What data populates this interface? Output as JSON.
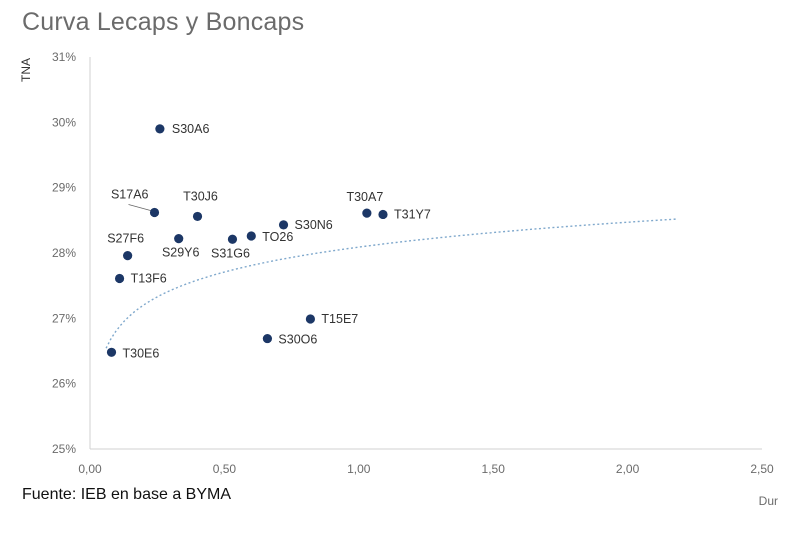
{
  "title": "Curva Lecaps y Boncaps",
  "source": "Fuente: IEB en base a BYMA",
  "chart_data": {
    "type": "scatter",
    "title": "Curva Lecaps y Boncaps",
    "xlabel": "Dur",
    "ylabel": "TNA",
    "xlim": [
      0,
      2.5
    ],
    "ylim": [
      25,
      31
    ],
    "x_ticks": [
      0,
      0.5,
      1.0,
      1.5,
      2.0,
      2.5
    ],
    "x_tick_labels": [
      "0,00",
      "0,50",
      "1,00",
      "1,50",
      "2,00",
      "2,50"
    ],
    "y_ticks": [
      25,
      26,
      27,
      28,
      29,
      30,
      31
    ],
    "y_tick_labels": [
      "25%",
      "26%",
      "27%",
      "28%",
      "29%",
      "30%",
      "31%"
    ],
    "grid": false,
    "point_color": "#1c3766",
    "trend_color": "#7fa8cc",
    "points": [
      {
        "label": "S30A6",
        "x": 0.26,
        "y": 29.9
      },
      {
        "label": "S17A6",
        "x": 0.24,
        "y": 28.62
      },
      {
        "label": "T30J6",
        "x": 0.4,
        "y": 28.56
      },
      {
        "label": "T30A7",
        "x": 1.03,
        "y": 28.61
      },
      {
        "label": "T31Y7",
        "x": 1.09,
        "y": 28.59
      },
      {
        "label": "S30N6",
        "x": 0.72,
        "y": 28.43
      },
      {
        "label": "TO26",
        "x": 0.6,
        "y": 28.26
      },
      {
        "label": "S31G6",
        "x": 0.53,
        "y": 28.21
      },
      {
        "label": "S29Y6",
        "x": 0.33,
        "y": 28.22
      },
      {
        "label": "S27F6",
        "x": 0.14,
        "y": 27.96
      },
      {
        "label": "T13F6",
        "x": 0.11,
        "y": 27.61
      },
      {
        "label": "T15E7",
        "x": 0.82,
        "y": 26.99
      },
      {
        "label": "S30O6",
        "x": 0.66,
        "y": 26.69
      },
      {
        "label": "T30E6",
        "x": 0.08,
        "y": 26.48
      }
    ],
    "trendline": {
      "type": "logarithmic",
      "x_range": [
        0.06,
        2.18
      ],
      "a": 28.09,
      "b": 0.55
    }
  }
}
